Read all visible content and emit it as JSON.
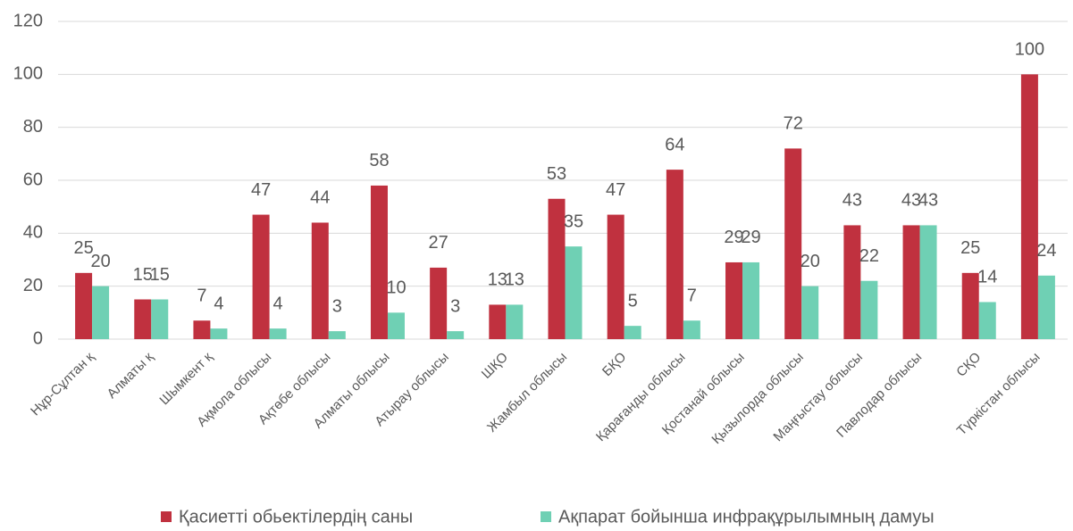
{
  "chart_data": {
    "type": "bar",
    "categories": [
      "Нұр-Сұлтан қ",
      "Алматы қ",
      "Шымкент қ",
      "Ақмола облысы",
      "Ақтөбе облысы",
      "Алматы облысы",
      "Атырау облысы",
      "ШҚО",
      "Жамбыл облысы",
      "БҚО",
      "Қарағанды облысы",
      "Қостанай облысы",
      "Қызылорда облысы",
      "Маңғыстау облысы",
      "Павлодар облысы",
      "СҚО",
      "Түркістан облысы"
    ],
    "series": [
      {
        "name": "Қасиетті обьектілердің саны",
        "color": "#c0313f",
        "values": [
          25,
          15,
          7,
          47,
          44,
          58,
          27,
          13,
          53,
          47,
          64,
          29,
          72,
          43,
          43,
          25,
          100
        ]
      },
      {
        "name": "Ақпарат бойынша инфрақұрылымның дамуы",
        "color": "#6fd0b4",
        "values": [
          20,
          15,
          4,
          4,
          3,
          10,
          3,
          13,
          35,
          5,
          7,
          29,
          20,
          22,
          43,
          14,
          24
        ]
      }
    ],
    "ylim": [
      0,
      120
    ],
    "yticks": [
      0,
      20,
      40,
      60,
      80,
      100,
      120
    ],
    "grid": true,
    "legend": "bottom"
  }
}
